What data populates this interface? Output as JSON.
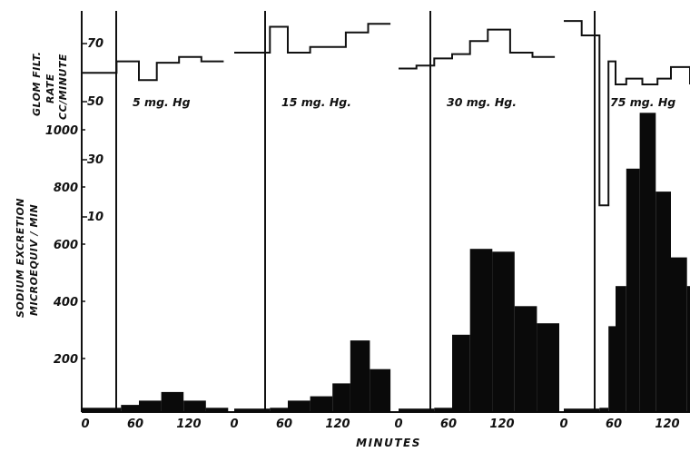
{
  "chart_data": {
    "type": "bar",
    "y_axis_labels": {
      "gfr": [
        "GLOM FILT.",
        "RATE",
        "CC/MINUTE"
      ],
      "sodium": [
        "SODIUM EXCRETION",
        "MICROEQUIV / MIN"
      ]
    },
    "gfr_ticks": [
      "70",
      "50",
      "30",
      "10"
    ],
    "sodium_ticks": [
      "1000",
      "800",
      "600",
      "400",
      "200"
    ],
    "xlabel": "MINUTES",
    "panels": [
      {
        "label": "5 mg. Hg",
        "x_ticks": [
          "0",
          "60",
          "120"
        ],
        "gfr": [
          {
            "t0": -5,
            "t1": 35,
            "value": 60
          },
          {
            "t0": 35,
            "t1": 60,
            "value": 64
          },
          {
            "t0": 60,
            "t1": 80,
            "value": 57.5
          },
          {
            "t0": 80,
            "t1": 105,
            "value": 63.5
          },
          {
            "t0": 105,
            "t1": 130,
            "value": 65.5
          },
          {
            "t0": 130,
            "t1": 155,
            "value": 64
          }
        ],
        "sodium": [
          {
            "t0": -5,
            "t1": 40,
            "value": 15
          },
          {
            "t0": 40,
            "t1": 60,
            "value": 25
          },
          {
            "t0": 60,
            "t1": 85,
            "value": 40
          },
          {
            "t0": 85,
            "t1": 110,
            "value": 70
          },
          {
            "t0": 110,
            "t1": 135,
            "value": 40
          },
          {
            "t0": 135,
            "t1": 160,
            "value": 15
          }
        ]
      },
      {
        "label": "15 mg. Hg.",
        "x_ticks": [
          "0",
          "60",
          "120"
        ],
        "gfr": [
          {
            "t0": 0,
            "t1": 40,
            "value": 67
          },
          {
            "t0": 40,
            "t1": 60,
            "value": 76
          },
          {
            "t0": 60,
            "t1": 85,
            "value": 67
          },
          {
            "t0": 85,
            "t1": 125,
            "value": 69
          },
          {
            "t0": 125,
            "t1": 150,
            "value": 74
          },
          {
            "t0": 150,
            "t1": 175,
            "value": 77
          }
        ],
        "sodium": [
          {
            "t0": 0,
            "t1": 40,
            "value": 12
          },
          {
            "t0": 40,
            "t1": 60,
            "value": 15
          },
          {
            "t0": 60,
            "t1": 85,
            "value": 40
          },
          {
            "t0": 85,
            "t1": 110,
            "value": 55
          },
          {
            "t0": 110,
            "t1": 130,
            "value": 100
          },
          {
            "t0": 130,
            "t1": 152,
            "value": 250
          },
          {
            "t0": 152,
            "t1": 175,
            "value": 150
          }
        ]
      },
      {
        "label": "30 mg. Hg.",
        "x_ticks": [
          "0",
          "60",
          "120"
        ],
        "gfr": [
          {
            "t0": 0,
            "t1": 20,
            "value": 61.5
          },
          {
            "t0": 20,
            "t1": 40,
            "value": 62.5
          },
          {
            "t0": 40,
            "t1": 60,
            "value": 65
          },
          {
            "t0": 60,
            "t1": 80,
            "value": 66.5
          },
          {
            "t0": 80,
            "t1": 100,
            "value": 71
          },
          {
            "t0": 100,
            "t1": 125,
            "value": 75
          },
          {
            "t0": 125,
            "t1": 150,
            "value": 67
          },
          {
            "t0": 150,
            "t1": 175,
            "value": 65.5
          }
        ],
        "sodium": [
          {
            "t0": 0,
            "t1": 40,
            "value": 12
          },
          {
            "t0": 40,
            "t1": 60,
            "value": 15
          },
          {
            "t0": 60,
            "t1": 80,
            "value": 270
          },
          {
            "t0": 80,
            "t1": 105,
            "value": 570
          },
          {
            "t0": 105,
            "t1": 130,
            "value": 560
          },
          {
            "t0": 130,
            "t1": 155,
            "value": 370
          },
          {
            "t0": 155,
            "t1": 180,
            "value": 310
          }
        ]
      },
      {
        "label": "75 mg. Hg",
        "x_ticks": [
          "0",
          "60",
          "120"
        ],
        "gfr": [
          {
            "t0": 0,
            "t1": 20,
            "value": 78
          },
          {
            "t0": 20,
            "t1": 40,
            "value": 73
          },
          {
            "t0": 40,
            "t1": 50,
            "value": 14
          },
          {
            "t0": 50,
            "t1": 58,
            "value": 64
          },
          {
            "t0": 58,
            "t1": 70,
            "value": 56
          },
          {
            "t0": 70,
            "t1": 88,
            "value": 58
          },
          {
            "t0": 88,
            "t1": 105,
            "value": 56
          },
          {
            "t0": 105,
            "t1": 120,
            "value": 58
          },
          {
            "t0": 120,
            "t1": 145,
            "value": 62
          },
          {
            "t0": 145,
            "t1": 160,
            "value": 56
          }
        ],
        "sodium": [
          {
            "t0": 0,
            "t1": 40,
            "value": 12
          },
          {
            "t0": 40,
            "t1": 50,
            "value": 15
          },
          {
            "t0": 50,
            "t1": 58,
            "value": 300
          },
          {
            "t0": 58,
            "t1": 70,
            "value": 440
          },
          {
            "t0": 70,
            "t1": 85,
            "value": 850
          },
          {
            "t0": 85,
            "t1": 103,
            "value": 1045
          },
          {
            "t0": 103,
            "t1": 120,
            "value": 770
          },
          {
            "t0": 120,
            "t1": 138,
            "value": 540
          },
          {
            "t0": 138,
            "t1": 160,
            "value": 440
          }
        ]
      }
    ]
  }
}
